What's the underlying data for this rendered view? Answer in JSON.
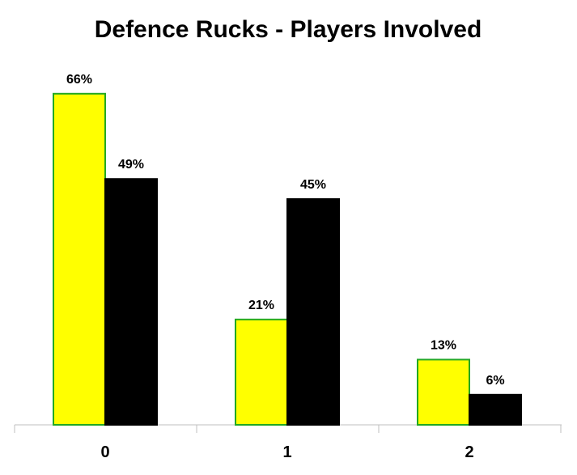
{
  "chart_data": {
    "type": "bar",
    "title": "Defence Rucks - Players Involved",
    "categories": [
      "0",
      "1",
      "2"
    ],
    "series": [
      {
        "values": [
          66,
          21,
          13
        ],
        "color": "#ffff00",
        "stroke": "#22a822"
      },
      {
        "values": [
          49,
          45,
          6
        ],
        "color": "#000000",
        "stroke": "#000000"
      }
    ],
    "data_labels": [
      [
        "66%",
        "21%",
        "13%"
      ],
      [
        "49%",
        "45%",
        "6%"
      ]
    ],
    "ylim": [
      0,
      72
    ],
    "grid": false,
    "legend": "none"
  }
}
